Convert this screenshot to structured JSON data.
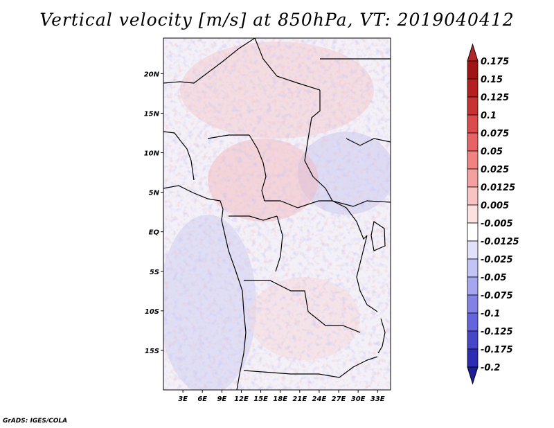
{
  "title": "Vertical velocity [m/s] at 850hPa, VT: 2019040412",
  "footer": "GrADS: IGES/COLA",
  "map": {
    "lon_range": [
      0,
      35
    ],
    "lat_range": [
      -20,
      24.5
    ],
    "lat_ticks": [
      {
        "value": 20,
        "label": "20N"
      },
      {
        "value": 15,
        "label": "15N"
      },
      {
        "value": 10,
        "label": "10N"
      },
      {
        "value": 5,
        "label": "5N"
      },
      {
        "value": 0,
        "label": "EQ"
      },
      {
        "value": -5,
        "label": "5S"
      },
      {
        "value": -10,
        "label": "10S"
      },
      {
        "value": -15,
        "label": "15S"
      }
    ],
    "lon_ticks": [
      {
        "value": 3,
        "label": "3E"
      },
      {
        "value": 6,
        "label": "6E"
      },
      {
        "value": 9,
        "label": "9E"
      },
      {
        "value": 12,
        "label": "12E"
      },
      {
        "value": 15,
        "label": "15E"
      },
      {
        "value": 18,
        "label": "18E"
      },
      {
        "value": 21,
        "label": "21E"
      },
      {
        "value": 24,
        "label": "24E"
      },
      {
        "value": 27,
        "label": "27E"
      },
      {
        "value": 30,
        "label": "30E"
      },
      {
        "value": 33,
        "label": "33E"
      }
    ]
  },
  "colorbar": {
    "levels": [
      {
        "label": "0.175",
        "color": "#a01414"
      },
      {
        "label": "0.15",
        "color": "#b42020"
      },
      {
        "label": "0.125",
        "color": "#c83232"
      },
      {
        "label": "0.1",
        "color": "#dc4b4b"
      },
      {
        "label": "0.075",
        "color": "#e66464"
      },
      {
        "label": "0.05",
        "color": "#f08282"
      },
      {
        "label": "0.025",
        "color": "#f5a0a0"
      },
      {
        "label": "0.0125",
        "color": "#fac3c3"
      },
      {
        "label": "0.005",
        "color": "#fde1e1"
      },
      {
        "label": "-0.005",
        "color": "#ffffff"
      },
      {
        "label": "-0.0125",
        "color": "#e1e1fa"
      },
      {
        "label": "-0.025",
        "color": "#c3c3f5"
      },
      {
        "label": "-0.05",
        "color": "#a5a5f0"
      },
      {
        "label": "-0.075",
        "color": "#8282e6"
      },
      {
        "label": "-0.1",
        "color": "#6464dc"
      },
      {
        "label": "-0.125",
        "color": "#4646c8"
      },
      {
        "label": "-0.175",
        "color": "#2d2db4"
      },
      {
        "label": "-0.2",
        "color": "#1414a0"
      }
    ],
    "top_color": "#b42828",
    "bottom_color": "#1e1e9b"
  }
}
